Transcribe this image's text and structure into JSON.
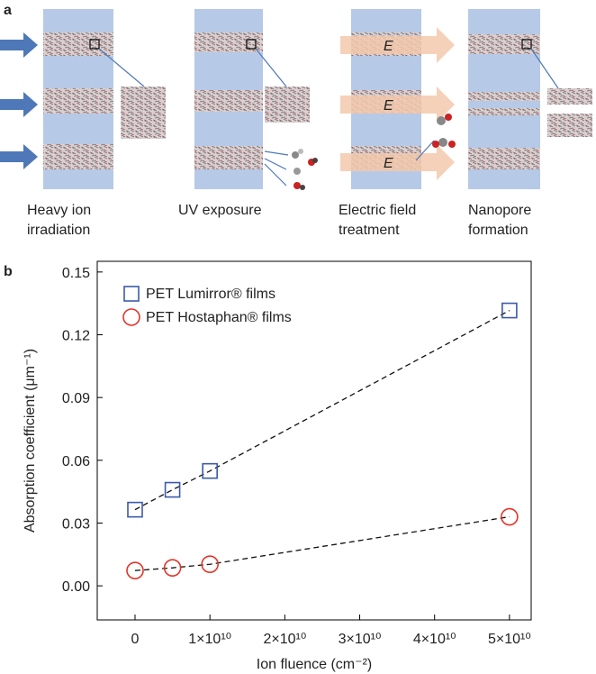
{
  "panel_a": {
    "label": "a",
    "steps": [
      [
        "Heavy ion",
        "irradiation"
      ],
      [
        "UV exposure"
      ],
      [
        "Electric field",
        "treatment"
      ],
      [
        "Nanopore",
        "formation"
      ]
    ],
    "field_label": "E"
  },
  "chart_data": {
    "type": "scatter",
    "panel_label": "b",
    "x_label": "Ion fluence (cm⁻²)",
    "y_label": "Absorption coefficient (μm⁻¹)",
    "x": [
      0,
      5000000000,
      10000000000,
      50000000000
    ],
    "series": [
      {
        "name": "PET Lumirror® films",
        "color": "#3b5aa8",
        "marker": "square",
        "values": [
          0.0364,
          0.0459,
          0.0549,
          0.1316
        ]
      },
      {
        "name": "PET Hostaphan® films",
        "color": "#e3342a",
        "marker": "circle",
        "values": [
          0.0073,
          0.0086,
          0.0103,
          0.033
        ]
      }
    ],
    "xlim": [
      -5050000000,
      52900000000
    ],
    "xticks": [
      0,
      {
        "value": 10000000000,
        "label": "1×10¹⁰"
      },
      {
        "value": 20000000000,
        "label": "2×10¹⁰"
      },
      {
        "value": 30000000000,
        "label": "3×10¹⁰"
      },
      {
        "value": 40000000000,
        "label": "4×10¹⁰"
      },
      {
        "value": 50000000000,
        "label": "5×10¹⁰"
      }
    ],
    "ylim": [
      -0.0163,
      0.1551
    ],
    "yticks": [
      {
        "value": 0,
        "label": "0.00"
      },
      0.03,
      0.06,
      0.09,
      0.12,
      0.15
    ],
    "legend": "upper left",
    "grid": false
  }
}
